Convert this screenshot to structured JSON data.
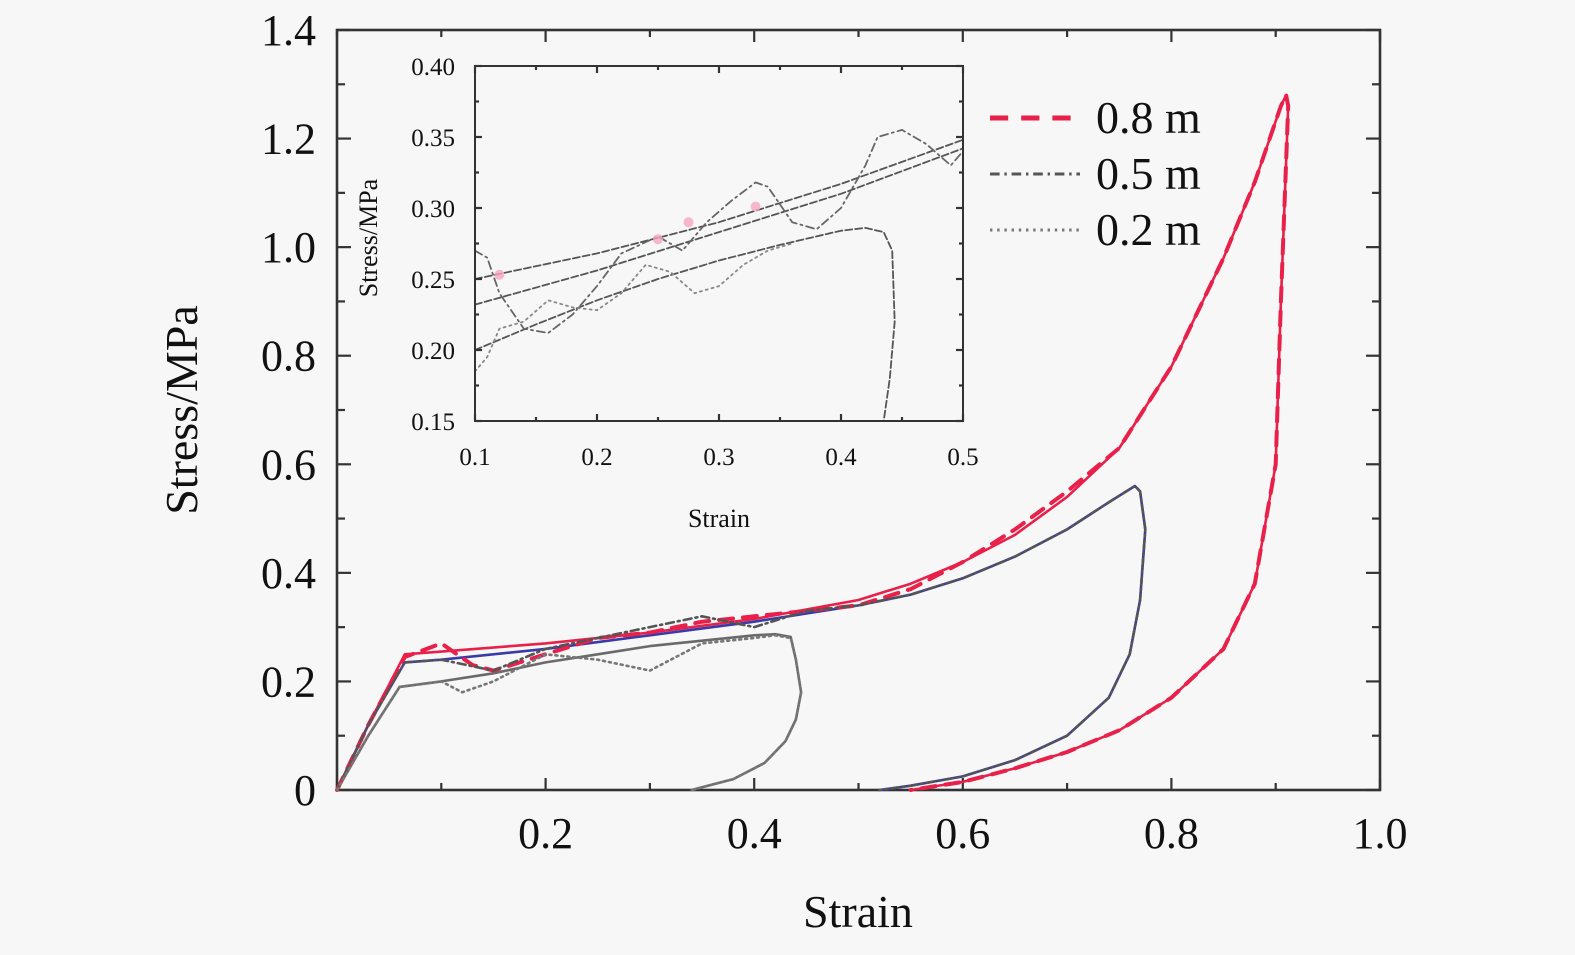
{
  "chart_data": [
    {
      "id": "main",
      "type": "line",
      "title": "",
      "xlabel": "Strain",
      "ylabel": "Stress/MPa",
      "xlim": [
        0,
        1.0
      ],
      "ylim": [
        0,
        1.4
      ],
      "xticks": [
        0.2,
        0.4,
        0.6,
        0.8,
        1.0
      ],
      "xtick_labels": [
        "0.2",
        "0.4",
        "0.6",
        "0.8",
        "1.0"
      ],
      "xminor_step": 0.1,
      "yticks": [
        0,
        0.2,
        0.4,
        0.6,
        0.8,
        1.0,
        1.2,
        1.4
      ],
      "ytick_labels": [
        "0",
        "0.2",
        "0.4",
        "0.6",
        "0.8",
        "1.0",
        "1.2",
        "1.4"
      ],
      "yminor_step": 0.1,
      "grid": false,
      "legend": {
        "placement": "top-right",
        "entries": [
          {
            "label": "0.8 m",
            "style": "dashed",
            "color": "#e8204a"
          },
          {
            "label": "0.5 m",
            "style": "dash-dot",
            "color": "#555555"
          },
          {
            "label": "0.2 m",
            "style": "dotted",
            "color": "#777777"
          }
        ]
      },
      "series": [
        {
          "name": "0.8 m (experiment)",
          "style": "dashed",
          "color": "#e8204a",
          "x": [
            0,
            0.03,
            0.065,
            0.1,
            0.13,
            0.15,
            0.2,
            0.25,
            0.3,
            0.35,
            0.4,
            0.45,
            0.5,
            0.55,
            0.6,
            0.65,
            0.7,
            0.75,
            0.8,
            0.85,
            0.88,
            0.905,
            0.91,
            0.912,
            0.905,
            0.9,
            0.88,
            0.85,
            0.8,
            0.75,
            0.7,
            0.65,
            0.6,
            0.55
          ],
          "y": [
            0,
            0.12,
            0.245,
            0.27,
            0.23,
            0.22,
            0.25,
            0.28,
            0.29,
            0.31,
            0.32,
            0.33,
            0.34,
            0.37,
            0.42,
            0.48,
            0.55,
            0.63,
            0.78,
            0.98,
            1.12,
            1.26,
            1.28,
            1.26,
            0.9,
            0.6,
            0.38,
            0.26,
            0.17,
            0.11,
            0.07,
            0.04,
            0.015,
            0
          ]
        },
        {
          "name": "0.8 m (fit)",
          "style": "solid",
          "color": "#e8204a",
          "x": [
            0,
            0.03,
            0.065,
            0.1,
            0.2,
            0.3,
            0.4,
            0.5,
            0.55,
            0.6,
            0.65,
            0.7,
            0.75,
            0.8,
            0.85,
            0.88,
            0.905,
            0.91,
            0.912,
            0.905,
            0.9,
            0.88,
            0.85,
            0.8,
            0.75,
            0.7,
            0.65,
            0.6,
            0.55
          ],
          "y": [
            0,
            0.12,
            0.25,
            0.255,
            0.27,
            0.29,
            0.315,
            0.35,
            0.38,
            0.42,
            0.47,
            0.54,
            0.63,
            0.78,
            0.98,
            1.12,
            1.26,
            1.28,
            1.26,
            0.9,
            0.6,
            0.38,
            0.26,
            0.17,
            0.11,
            0.07,
            0.04,
            0.015,
            0
          ]
        },
        {
          "name": "0.5 m (experiment)",
          "style": "dash-dot",
          "color": "#555555",
          "x": [
            0,
            0.03,
            0.065,
            0.1,
            0.15,
            0.2,
            0.25,
            0.3,
            0.35,
            0.4,
            0.45,
            0.5,
            0.55,
            0.6,
            0.65,
            0.7,
            0.74,
            0.765,
            0.77,
            0.775,
            0.77,
            0.76,
            0.74,
            0.7,
            0.65,
            0.6,
            0.55,
            0.52
          ],
          "y": [
            0,
            0.12,
            0.235,
            0.24,
            0.22,
            0.26,
            0.28,
            0.3,
            0.32,
            0.3,
            0.33,
            0.34,
            0.36,
            0.39,
            0.43,
            0.48,
            0.53,
            0.56,
            0.55,
            0.48,
            0.35,
            0.25,
            0.17,
            0.1,
            0.055,
            0.025,
            0.008,
            0
          ]
        },
        {
          "name": "0.5 m (fit)",
          "style": "solid",
          "color": "#3a3aa8",
          "x": [
            0,
            0.03,
            0.065,
            0.1,
            0.2,
            0.3,
            0.4,
            0.5,
            0.55,
            0.6,
            0.65,
            0.7,
            0.74,
            0.765,
            0.77,
            0.775,
            0.77,
            0.76,
            0.74,
            0.7,
            0.65,
            0.6,
            0.55,
            0.52
          ],
          "y": [
            0,
            0.12,
            0.235,
            0.24,
            0.26,
            0.285,
            0.31,
            0.34,
            0.36,
            0.39,
            0.43,
            0.48,
            0.53,
            0.56,
            0.55,
            0.48,
            0.35,
            0.25,
            0.17,
            0.1,
            0.055,
            0.025,
            0.008,
            0
          ]
        },
        {
          "name": "0.2 m (experiment)",
          "style": "dotted",
          "color": "#777777",
          "x": [
            0,
            0.03,
            0.06,
            0.1,
            0.12,
            0.15,
            0.2,
            0.25,
            0.3,
            0.35,
            0.4,
            0.42,
            0.435,
            0.44,
            0.445,
            0.44,
            0.43,
            0.41,
            0.38,
            0.35,
            0.34
          ],
          "y": [
            0,
            0.1,
            0.19,
            0.2,
            0.18,
            0.2,
            0.25,
            0.24,
            0.22,
            0.27,
            0.28,
            0.285,
            0.28,
            0.24,
            0.18,
            0.13,
            0.09,
            0.05,
            0.02,
            0.005,
            0
          ]
        },
        {
          "name": "0.2 m (fit)",
          "style": "solid",
          "color": "#6a6a6a",
          "x": [
            0,
            0.03,
            0.06,
            0.1,
            0.15,
            0.2,
            0.25,
            0.3,
            0.35,
            0.4,
            0.42,
            0.435,
            0.44,
            0.445,
            0.44,
            0.43,
            0.41,
            0.38,
            0.35,
            0.34
          ],
          "y": [
            0,
            0.1,
            0.19,
            0.2,
            0.215,
            0.235,
            0.25,
            0.265,
            0.275,
            0.285,
            0.287,
            0.282,
            0.24,
            0.18,
            0.13,
            0.09,
            0.05,
            0.02,
            0.005,
            0
          ]
        }
      ]
    },
    {
      "id": "inset",
      "type": "line",
      "title": "",
      "xlabel": "Strain",
      "ylabel": "Stress/MPa",
      "xlim": [
        0.1,
        0.5
      ],
      "ylim": [
        0.15,
        0.4
      ],
      "xticks": [
        0.1,
        0.2,
        0.3,
        0.4,
        0.5
      ],
      "xtick_labels": [
        "0.1",
        "0.2",
        "0.3",
        "0.4",
        "0.5"
      ],
      "xminor_step": 0.05,
      "yticks": [
        0.15,
        0.2,
        0.25,
        0.3,
        0.35,
        0.4
      ],
      "ytick_labels": [
        "0.15",
        "0.20",
        "0.25",
        "0.30",
        "0.35",
        "0.40"
      ],
      "grid": false,
      "series": [
        {
          "name": "0.8 m (fit)",
          "style": "dashed",
          "color": "#555555",
          "x": [
            0.1,
            0.2,
            0.3,
            0.4,
            0.5
          ],
          "y": [
            0.25,
            0.268,
            0.29,
            0.317,
            0.348
          ]
        },
        {
          "name": "0.5 m (fit)",
          "style": "dashed",
          "color": "#555555",
          "x": [
            0.1,
            0.2,
            0.3,
            0.4,
            0.5
          ],
          "y": [
            0.232,
            0.256,
            0.283,
            0.31,
            0.342
          ]
        },
        {
          "name": "0.2 m (fit)",
          "style": "dashed",
          "color": "#555555",
          "x": [
            0.1,
            0.15,
            0.2,
            0.25,
            0.3,
            0.35,
            0.4,
            0.42,
            0.435,
            0.442,
            0.444,
            0.44,
            0.435
          ],
          "y": [
            0.2,
            0.218,
            0.235,
            0.25,
            0.263,
            0.274,
            0.284,
            0.286,
            0.283,
            0.27,
            0.22,
            0.18,
            0.15
          ]
        },
        {
          "name": "0.5 m (experiment)",
          "style": "dash-dot",
          "color": "#666666",
          "x": [
            0.1,
            0.11,
            0.12,
            0.14,
            0.16,
            0.18,
            0.2,
            0.22,
            0.25,
            0.27,
            0.29,
            0.31,
            0.33,
            0.34,
            0.36,
            0.38,
            0.4,
            0.42,
            0.43,
            0.45,
            0.47,
            0.49,
            0.5
          ],
          "y": [
            0.27,
            0.265,
            0.24,
            0.215,
            0.212,
            0.225,
            0.245,
            0.268,
            0.28,
            0.27,
            0.29,
            0.305,
            0.318,
            0.315,
            0.29,
            0.285,
            0.3,
            0.33,
            0.35,
            0.355,
            0.345,
            0.33,
            0.34
          ]
        },
        {
          "name": "0.2 m (experiment)",
          "style": "dotted",
          "color": "#888888",
          "x": [
            0.1,
            0.11,
            0.12,
            0.14,
            0.16,
            0.18,
            0.2,
            0.22,
            0.24,
            0.26,
            0.28,
            0.3,
            0.32,
            0.34,
            0.36
          ],
          "y": [
            0.185,
            0.195,
            0.215,
            0.22,
            0.235,
            0.23,
            0.228,
            0.24,
            0.26,
            0.255,
            0.24,
            0.245,
            0.26,
            0.27,
            0.275
          ]
        }
      ]
    }
  ]
}
